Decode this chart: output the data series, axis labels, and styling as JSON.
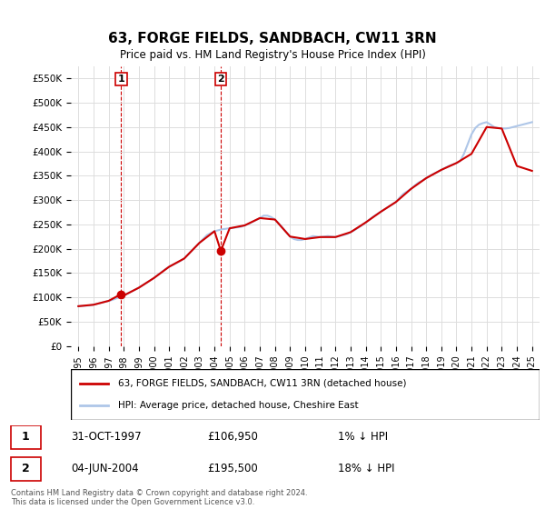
{
  "title": "63, FORGE FIELDS, SANDBACH, CW11 3RN",
  "subtitle": "Price paid vs. HM Land Registry's House Price Index (HPI)",
  "hpi_label": "HPI: Average price, detached house, Cheshire East",
  "price_label": "63, FORGE FIELDS, SANDBACH, CW11 3RN (detached house)",
  "transactions": [
    {
      "label": "1",
      "date": "31-OCT-1997",
      "price": 106950,
      "note": "1% ↓ HPI"
    },
    {
      "label": "2",
      "date": "04-JUN-2004",
      "price": 195500,
      "note": "18% ↓ HPI"
    }
  ],
  "transaction_years": [
    1997.83,
    2004.42
  ],
  "transaction_prices": [
    106950,
    195500
  ],
  "ylim": [
    0,
    575000
  ],
  "yticks": [
    0,
    50000,
    100000,
    150000,
    200000,
    250000,
    300000,
    350000,
    400000,
    450000,
    500000,
    550000
  ],
  "ytick_labels": [
    "£0",
    "£50K",
    "£100K",
    "£150K",
    "£200K",
    "£250K",
    "£300K",
    "£350K",
    "£400K",
    "£450K",
    "£500K",
    "£550K"
  ],
  "xlim_start": 1994.5,
  "xlim_end": 2025.5,
  "xticks": [
    1995,
    1996,
    1997,
    1998,
    1999,
    2000,
    2001,
    2002,
    2003,
    2004,
    2005,
    2006,
    2007,
    2008,
    2009,
    2010,
    2011,
    2012,
    2013,
    2014,
    2015,
    2016,
    2017,
    2018,
    2019,
    2020,
    2021,
    2022,
    2023,
    2024,
    2025
  ],
  "hpi_color": "#aec6e8",
  "price_color": "#cc0000",
  "grid_color": "#dddddd",
  "background_color": "#ffffff",
  "plot_bg_color": "#ffffff",
  "legend_box_color": "#000000",
  "footnote": "Contains HM Land Registry data © Crown copyright and database right 2024.\nThis data is licensed under the Open Government Licence v3.0.",
  "hpi_data_x": [
    1995.0,
    1995.25,
    1995.5,
    1995.75,
    1996.0,
    1996.25,
    1996.5,
    1996.75,
    1997.0,
    1997.25,
    1997.5,
    1997.75,
    1998.0,
    1998.25,
    1998.5,
    1998.75,
    1999.0,
    1999.25,
    1999.5,
    1999.75,
    2000.0,
    2000.25,
    2000.5,
    2000.75,
    2001.0,
    2001.25,
    2001.5,
    2001.75,
    2002.0,
    2002.25,
    2002.5,
    2002.75,
    2003.0,
    2003.25,
    2003.5,
    2003.75,
    2004.0,
    2004.25,
    2004.5,
    2004.75,
    2005.0,
    2005.25,
    2005.5,
    2005.75,
    2006.0,
    2006.25,
    2006.5,
    2006.75,
    2007.0,
    2007.25,
    2007.5,
    2007.75,
    2008.0,
    2008.25,
    2008.5,
    2008.75,
    2009.0,
    2009.25,
    2009.5,
    2009.75,
    2010.0,
    2010.25,
    2010.5,
    2010.75,
    2011.0,
    2011.25,
    2011.5,
    2011.75,
    2012.0,
    2012.25,
    2012.5,
    2012.75,
    2013.0,
    2013.25,
    2013.5,
    2013.75,
    2014.0,
    2014.25,
    2014.5,
    2014.75,
    2015.0,
    2015.25,
    2015.5,
    2015.75,
    2016.0,
    2016.25,
    2016.5,
    2016.75,
    2017.0,
    2017.25,
    2017.5,
    2017.75,
    2018.0,
    2018.25,
    2018.5,
    2018.75,
    2019.0,
    2019.25,
    2019.5,
    2019.75,
    2020.0,
    2020.25,
    2020.5,
    2020.75,
    2021.0,
    2021.25,
    2021.5,
    2021.75,
    2022.0,
    2022.25,
    2022.5,
    2022.75,
    2023.0,
    2023.25,
    2023.5,
    2023.75,
    2024.0,
    2024.25,
    2024.5,
    2024.75,
    2025.0
  ],
  "hpi_data_y": [
    82000,
    82500,
    83000,
    83500,
    85000,
    87000,
    89000,
    91000,
    93000,
    95000,
    98000,
    101000,
    104000,
    108000,
    112000,
    116000,
    120000,
    125000,
    130000,
    135000,
    140000,
    146000,
    152000,
    158000,
    163000,
    167000,
    171000,
    175000,
    180000,
    188000,
    196000,
    204000,
    212000,
    220000,
    228000,
    232000,
    236000,
    238000,
    240000,
    241000,
    242000,
    243000,
    244000,
    245000,
    248000,
    251000,
    255000,
    259000,
    263000,
    268000,
    268000,
    265000,
    260000,
    252000,
    243000,
    234000,
    225000,
    220000,
    218000,
    218000,
    220000,
    223000,
    226000,
    225000,
    224000,
    225000,
    226000,
    225000,
    224000,
    226000,
    228000,
    230000,
    234000,
    238000,
    243000,
    248000,
    254000,
    260000,
    266000,
    271000,
    276000,
    281000,
    286000,
    291000,
    296000,
    305000,
    313000,
    318000,
    323000,
    330000,
    336000,
    340000,
    345000,
    350000,
    354000,
    358000,
    362000,
    366000,
    370000,
    373000,
    376000,
    380000,
    395000,
    415000,
    435000,
    448000,
    455000,
    458000,
    460000,
    455000,
    450000,
    448000,
    447000,
    447000,
    448000,
    450000,
    452000,
    454000,
    456000,
    458000,
    460000
  ],
  "price_data_x": [
    1995.0,
    1996.0,
    1997.0,
    1997.83,
    1998.0,
    1999.0,
    2000.0,
    2001.0,
    2002.0,
    2003.0,
    2004.0,
    2004.42,
    2005.0,
    2006.0,
    2007.0,
    2008.0,
    2009.0,
    2010.0,
    2011.0,
    2012.0,
    2013.0,
    2014.0,
    2015.0,
    2016.0,
    2017.0,
    2018.0,
    2019.0,
    2020.0,
    2021.0,
    2022.0,
    2023.0,
    2024.0,
    2025.0
  ],
  "price_data_y": [
    82000,
    85000,
    93000,
    106950,
    104000,
    120000,
    140000,
    163000,
    180000,
    212000,
    236000,
    195500,
    242000,
    248000,
    263000,
    260000,
    225000,
    220000,
    224000,
    224000,
    234000,
    254000,
    276000,
    296000,
    323000,
    345000,
    362000,
    376000,
    395000,
    450000,
    447000,
    370000,
    360000
  ]
}
